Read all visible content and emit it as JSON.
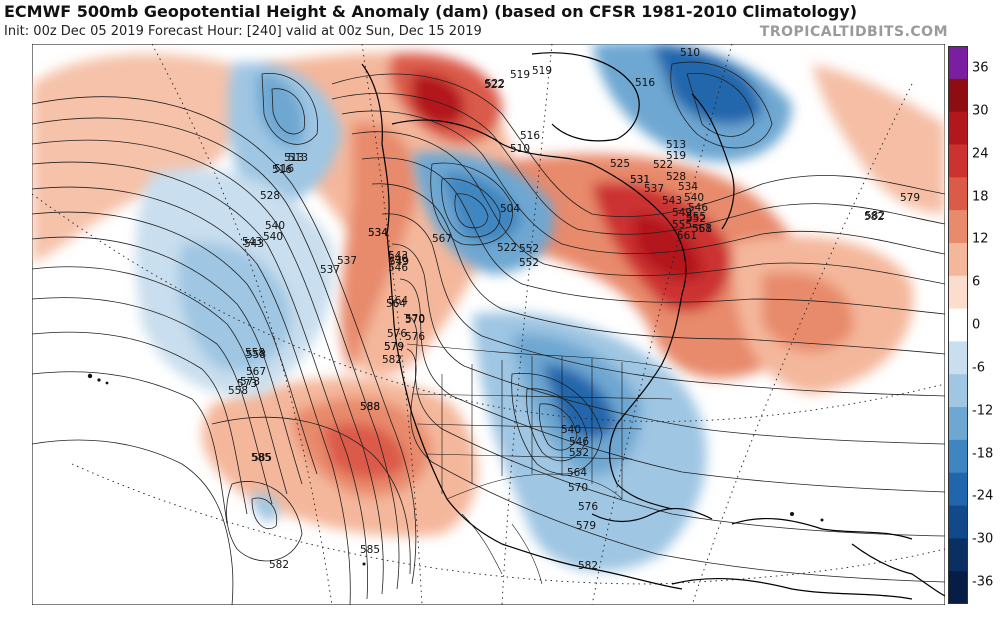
{
  "header": {
    "title": "ECMWF 500mb Geopotential Height & Anomaly (dam) (based on CFSR 1981-2010 Climatology)",
    "init_text": "Init: 00z Dec 05 2019   Forecast Hour: [240]   valid at 00z Sun, Dec 15 2019",
    "brand": "TROPICALTIDBITS.COM"
  },
  "colorbar": {
    "labels": [
      "36",
      "30",
      "24",
      "18",
      "12",
      "6",
      "0",
      "-6",
      "-12",
      "-18",
      "-24",
      "-30",
      "-36"
    ],
    "colors": [
      "#7a1fa2",
      "#8e0d12",
      "#b3171e",
      "#cc3330",
      "#db5a48",
      "#e88a6c",
      "#f4b79b",
      "#fbdccd",
      "#ffffff",
      "#c9deee",
      "#9fc6e3",
      "#6ea7d2",
      "#3f86c0",
      "#2166ac",
      "#12498a",
      "#0a2f63",
      "#071d45"
    ]
  },
  "contour_labels": [
    "510",
    "516",
    "519",
    "522",
    "513",
    "516",
    "519",
    "522",
    "525",
    "528",
    "531",
    "534",
    "537",
    "540",
    "543",
    "546",
    "549",
    "552",
    "555",
    "558",
    "561",
    "564",
    "567",
    "570",
    "573",
    "576",
    "579",
    "582",
    "585",
    "588",
    "504",
    "510",
    "513",
    "516",
    "522",
    "534",
    "540",
    "543",
    "546",
    "552",
    "558",
    "564",
    "570",
    "576",
    "579",
    "582",
    "585",
    "582",
    "537",
    "540",
    "543",
    "546",
    "552",
    "558",
    "564",
    "567",
    "570",
    "573",
    "576",
    "579",
    "582",
    "585",
    "588",
    "513",
    "516",
    "519",
    "522",
    "528",
    "531",
    "534",
    "537",
    "540",
    "543",
    "546",
    "549",
    "552",
    "555",
    "558",
    "561",
    "582",
    "579"
  ]
}
